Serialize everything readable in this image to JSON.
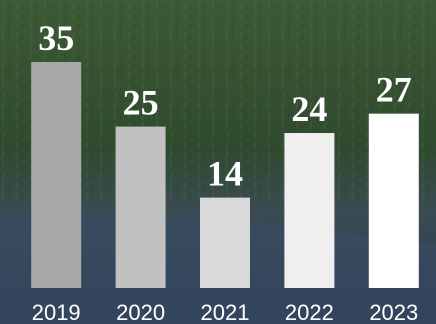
{
  "chart_data": {
    "type": "bar",
    "categories": [
      "2019",
      "2020",
      "2021",
      "2022",
      "2023"
    ],
    "values": [
      35,
      25,
      14,
      24,
      27
    ],
    "colors": [
      "#a8a8a8",
      "#c1c1c1",
      "#d9d9d9",
      "#efefef",
      "#ffffff"
    ]
  }
}
